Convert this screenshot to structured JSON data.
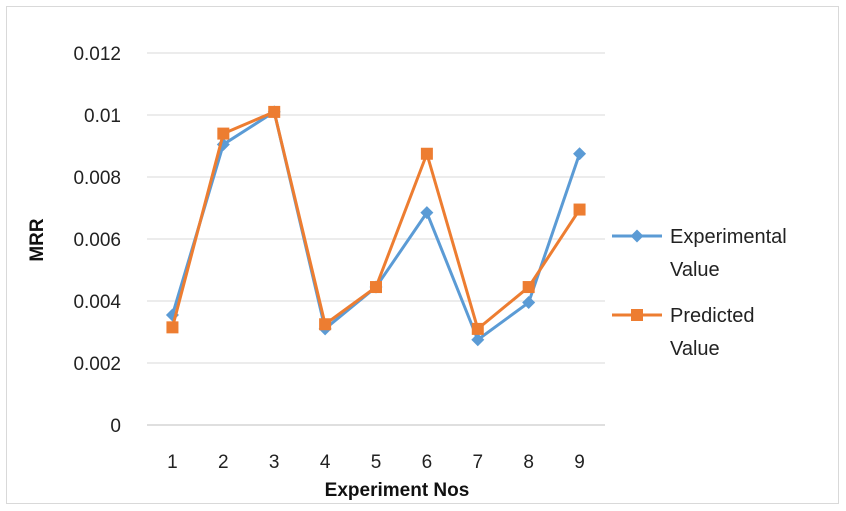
{
  "chart_data": {
    "type": "line",
    "title": "",
    "xlabel": "Experiment Nos",
    "ylabel": "MRR",
    "categories": [
      "1",
      "2",
      "3",
      "4",
      "5",
      "6",
      "7",
      "8",
      "9"
    ],
    "ylim": [
      0,
      0.012
    ],
    "yticks": [
      "0",
      "0.002",
      "0.004",
      "0.006",
      "0.008",
      "0.01",
      "0.012"
    ],
    "grid": true,
    "legend_position": "right",
    "series": [
      {
        "name_lines": [
          "Experimental",
          "Value"
        ],
        "color": "#5b9bd5",
        "marker": "diamond",
        "values": [
          0.00355,
          0.00905,
          0.0101,
          0.0031,
          0.00445,
          0.00685,
          0.00275,
          0.00395,
          0.00875
        ]
      },
      {
        "name_lines": [
          "Predicted",
          "Value"
        ],
        "color": "#ed7d31",
        "marker": "square",
        "values": [
          0.00315,
          0.0094,
          0.0101,
          0.00325,
          0.00445,
          0.00875,
          0.0031,
          0.00445,
          0.00695
        ]
      }
    ]
  }
}
